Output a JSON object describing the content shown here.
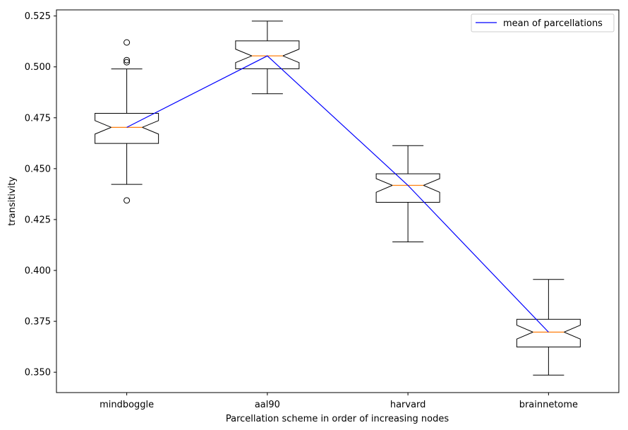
{
  "chart_data": {
    "type": "box",
    "title": "",
    "xlabel": "Parcellation scheme in order of increasing nodes",
    "ylabel": "transitivity",
    "ylim": [
      0.34,
      0.528
    ],
    "yticks": [
      0.35,
      0.375,
      0.4,
      0.425,
      0.45,
      0.475,
      0.5,
      0.525
    ],
    "ytick_labels": [
      "0.350",
      "0.375",
      "0.400",
      "0.425",
      "0.450",
      "0.475",
      "0.500",
      "0.525"
    ],
    "grid": false,
    "notched": true,
    "legend": {
      "position": "top-right",
      "entries": [
        "mean of parcellations"
      ]
    },
    "categories": [
      "mindboggle",
      "aal90",
      "harvard",
      "brainnetome"
    ],
    "boxes": [
      {
        "label": "mindboggle",
        "whisker_low": 0.4423,
        "q1": 0.4624,
        "median": 0.4703,
        "q3": 0.4772,
        "whisker_high": 0.499,
        "notch_low": 0.467,
        "notch_high": 0.4736,
        "outliers": [
          0.512,
          0.5033,
          0.5023,
          0.4344
        ]
      },
      {
        "label": "aal90",
        "whisker_low": 0.4868,
        "q1": 0.4991,
        "median": 0.5054,
        "q3": 0.5128,
        "whisker_high": 0.5225,
        "notch_low": 0.5021,
        "notch_high": 0.5087,
        "outliers": []
      },
      {
        "label": "harvard",
        "whisker_low": 0.414,
        "q1": 0.4335,
        "median": 0.4418,
        "q3": 0.4475,
        "whisker_high": 0.4613,
        "notch_low": 0.4384,
        "notch_high": 0.4451,
        "outliers": []
      },
      {
        "label": "brainnetome",
        "whisker_low": 0.3486,
        "q1": 0.3624,
        "median": 0.3697,
        "q3": 0.376,
        "whisker_high": 0.3956,
        "notch_low": 0.3663,
        "notch_high": 0.3731,
        "outliers": []
      }
    ],
    "series": [
      {
        "name": "mean of parcellations",
        "type": "line",
        "color": "#0000ff",
        "values": [
          0.4703,
          0.5054,
          0.4418,
          0.3697
        ]
      }
    ],
    "colors": {
      "box": "#000000",
      "median": "#ff7f0e",
      "mean_line": "#0000ff"
    }
  }
}
